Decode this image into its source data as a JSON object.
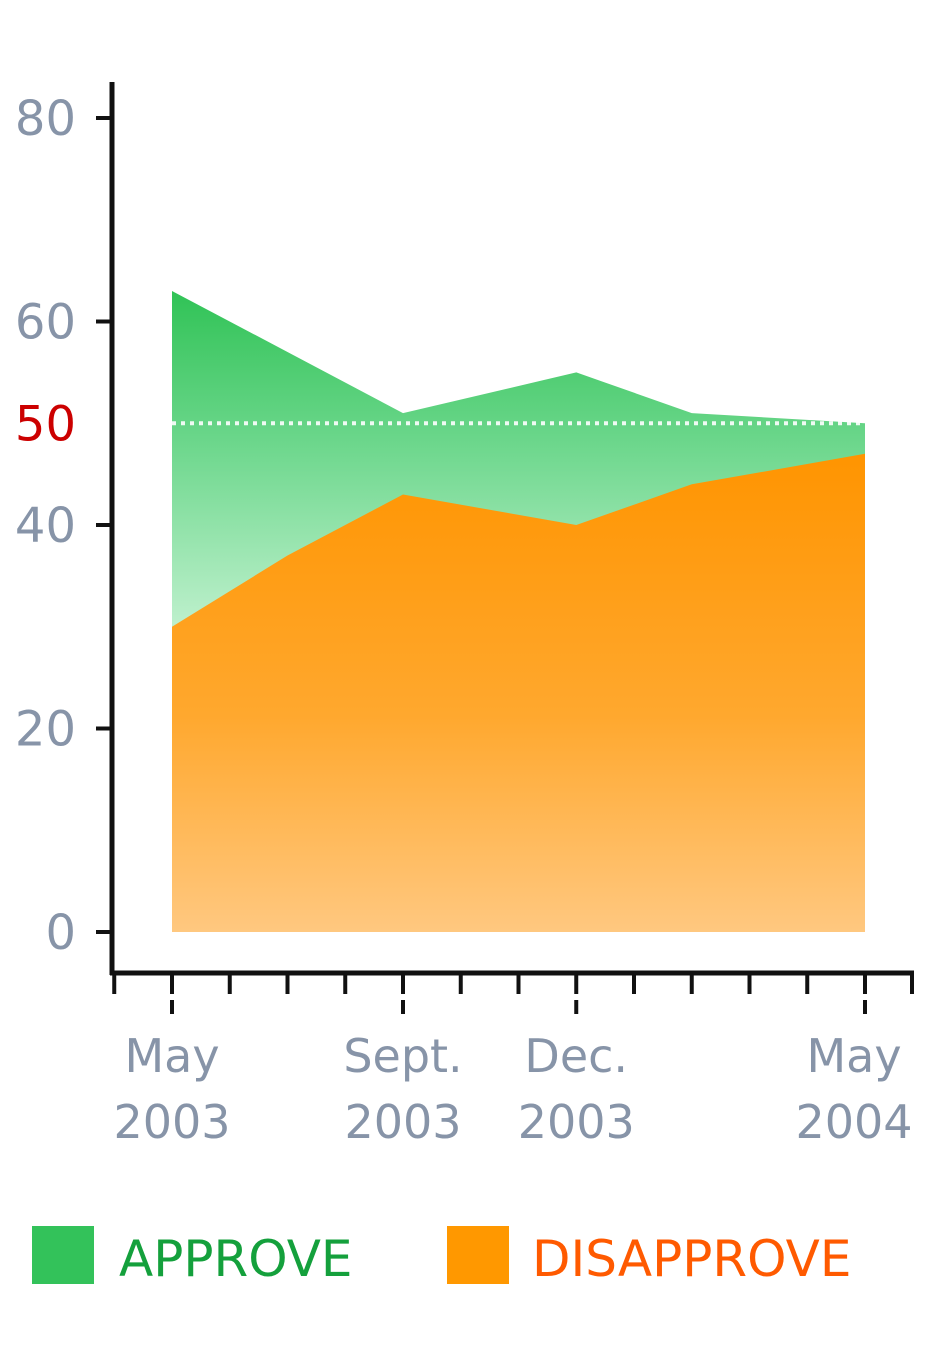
{
  "chart_data": {
    "type": "area",
    "x": [
      "May 2003",
      "Sept. 2003",
      "Dec. 2003",
      "May 2004"
    ],
    "series": [
      {
        "name": "APPROVE",
        "color": "#33c25a",
        "x": [
          "2003-05",
          "2003-07",
          "2003-09",
          "2003-12",
          "2004-02",
          "2004-05"
        ],
        "values": [
          63,
          57,
          51,
          55,
          51,
          50
        ]
      },
      {
        "name": "DISAPPROVE",
        "color": "#ff9800",
        "x": [
          "2003-05",
          "2003-07",
          "2003-09",
          "2003-12",
          "2004-02",
          "2004-05"
        ],
        "values": [
          30,
          37,
          43,
          40,
          44,
          47
        ]
      }
    ],
    "yticks": [
      {
        "value": 0,
        "label": "0"
      },
      {
        "value": 20,
        "label": "20"
      },
      {
        "value": 40,
        "label": "40"
      },
      {
        "value": 50,
        "label": "50",
        "highlight": true
      },
      {
        "value": 60,
        "label": "60"
      },
      {
        "value": 80,
        "label": "80"
      }
    ],
    "xticks": [
      {
        "x": "2003-05",
        "lines": [
          "May",
          "2003"
        ]
      },
      {
        "x": "2003-09",
        "lines": [
          "Sept.",
          "2003"
        ]
      },
      {
        "x": "2003-12",
        "lines": [
          "Dec.",
          "2003"
        ]
      },
      {
        "x": "2004-05",
        "lines": [
          "May",
          "2004"
        ]
      }
    ],
    "reference_line": {
      "value": 50,
      "style": "dotted",
      "color": "#ffffff"
    },
    "ylim": [
      0,
      80
    ],
    "xlim": [
      "2003-04",
      "2004-05"
    ],
    "highlight_color": "#cc0000",
    "legend": {
      "position": "bottom",
      "items": [
        {
          "label": "APPROVE",
          "swatch_color": "#33c25a",
          "text_color": "#14a03c"
        },
        {
          "label": "DISAPPROVE",
          "swatch_color": "#ff9800",
          "text_color": "#ff5a00"
        }
      ]
    },
    "title": "",
    "xlabel": "",
    "ylabel": ""
  }
}
